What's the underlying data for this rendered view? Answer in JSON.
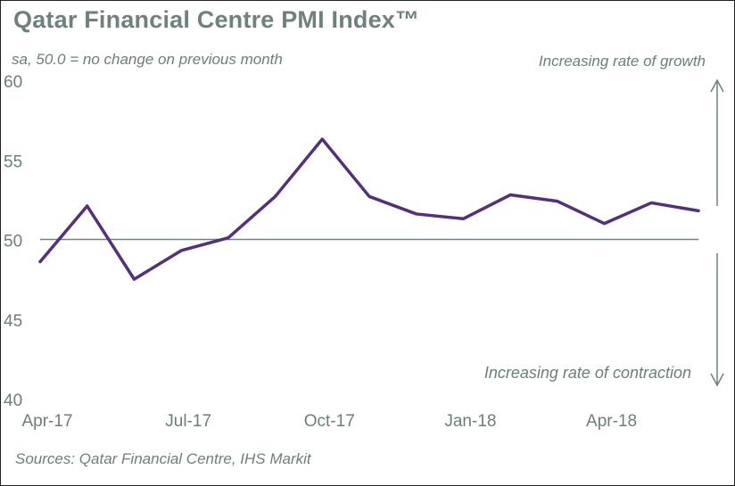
{
  "chart_data": {
    "type": "line",
    "title": "Qatar Financial Centre PMI Index™",
    "subtitle": "sa, 50.0 = no change on previous month",
    "xlabel": "",
    "ylabel": "",
    "ylim": [
      40,
      60
    ],
    "yticks": [
      40,
      45,
      50,
      55,
      60
    ],
    "reference_line": 50,
    "x": [
      "Apr-17",
      "May-17",
      "Jun-17",
      "Jul-17",
      "Aug-17",
      "Sep-17",
      "Oct-17",
      "Nov-17",
      "Dec-17",
      "Jan-18",
      "Feb-18",
      "Mar-18",
      "Apr-18",
      "May-18",
      "Jun-18"
    ],
    "xtick_labels": [
      "Apr-17",
      "Jul-17",
      "Oct-17",
      "Jan-18",
      "Apr-18"
    ],
    "series": [
      {
        "name": "Qatar Financial Centre PMI",
        "color": "#55307a",
        "values": [
          48.6,
          52.1,
          47.5,
          49.3,
          50.1,
          52.7,
          56.3,
          52.7,
          51.6,
          51.3,
          52.8,
          52.4,
          51.0,
          52.3,
          51.8
        ]
      }
    ],
    "annotations": {
      "growth": "Increasing rate of growth",
      "contraction": "Increasing rate of contraction"
    },
    "source": "Sources: Qatar Financial Centre, IHS Markit"
  },
  "colors": {
    "text": "#6b7f7a",
    "title": "#6e817c",
    "line": "#55307a",
    "axis": "#6f827d",
    "arrow": "#6f827d"
  }
}
